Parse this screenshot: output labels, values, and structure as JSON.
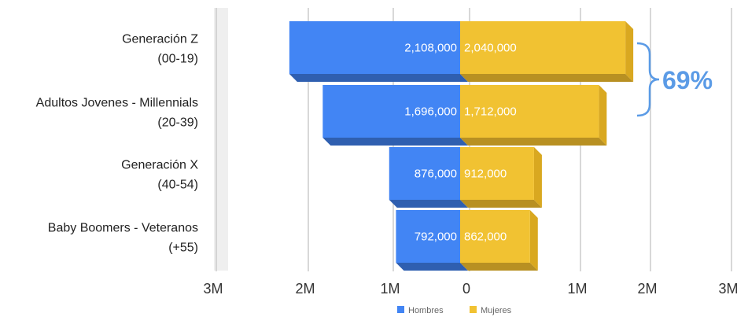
{
  "chart_data": {
    "type": "bar",
    "orientation": "horizontal-mirrored",
    "categories": [
      [
        "Generación Z",
        "(00-19)"
      ],
      [
        "Adultos Jovenes - Millennials",
        "(20-39)"
      ],
      [
        "Generación X",
        "(40-54)"
      ],
      [
        "Baby Boomers - Veteranos",
        "(+55)"
      ]
    ],
    "series": [
      {
        "name": "Hombres",
        "values": [
          2108000,
          1696000,
          876000,
          792000
        ],
        "labels": [
          "2,108,000",
          "1,696,000",
          "876,000",
          "792,000"
        ],
        "color": "#4285f4",
        "shade": "#2f5fb0"
      },
      {
        "name": "Mujeres",
        "values": [
          2040000,
          1712000,
          912000,
          862000
        ],
        "labels": [
          "2,040,000",
          "1,712,000",
          "912,000",
          "862,000"
        ],
        "color": "#f1c232",
        "shade": "#b89022"
      }
    ],
    "xlim": [
      -3000000,
      3000000
    ],
    "xticks": [
      {
        "value": -3000000,
        "label": "3M"
      },
      {
        "value": -2000000,
        "label": "2M"
      },
      {
        "value": -1000000,
        "label": "1M"
      },
      {
        "value": 0,
        "label": "0"
      },
      {
        "value": 1000000,
        "label": "1M"
      },
      {
        "value": 2000000,
        "label": "2M"
      },
      {
        "value": 3000000,
        "label": "3M"
      }
    ],
    "grid": true,
    "legend_position": "bottom",
    "annotation": {
      "text": "69%",
      "color": "#5b9be6",
      "spans_categories": [
        0,
        1
      ]
    }
  }
}
